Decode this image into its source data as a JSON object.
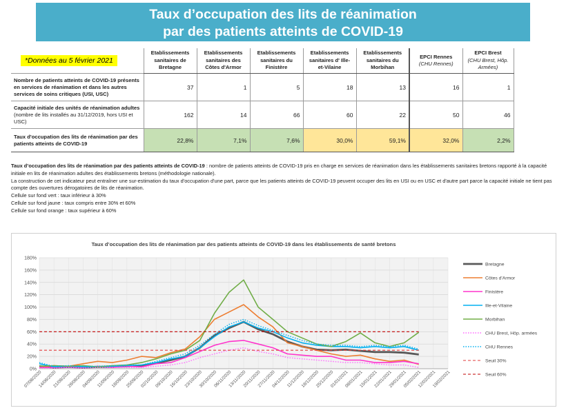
{
  "title": {
    "line1": "Taux d’occupation des lits de réanimation",
    "line2": "par des patients atteints de COVID-19"
  },
  "table": {
    "date_note": "*Données au 5 février 2021",
    "columns": [
      {
        "name": "Etablissements sanitaires de Bretagne",
        "sub": ""
      },
      {
        "name": "Etablissements sanitaires des Côtes d'Armor",
        "sub": ""
      },
      {
        "name": "Etablissements sanitaires du Finistère",
        "sub": ""
      },
      {
        "name": "Etablissements sanitaires d' Ille-et-Vilaine",
        "sub": ""
      },
      {
        "name": "Etablissements sanitaires du Morbihan",
        "sub": ""
      },
      {
        "name": "EPCI Rennes",
        "sub": "(CHU Rennes)"
      },
      {
        "name": "EPCI Brest",
        "sub": "(CHU Brest, Hôp. Armées)"
      }
    ],
    "rows": [
      {
        "label": "Nombre de patients atteints de COVID-19 présents en services de réanimation et dans les autres services de soins critiques (USI, USC)",
        "small": "",
        "values": [
          "37",
          "1",
          "5",
          "18",
          "13",
          "16",
          "1"
        ]
      },
      {
        "label": "Capacité initiale des unités de réanimation adultes",
        "small": "(nombre de lits installés au 31/12/2019, hors USI et USC)",
        "values": [
          "162",
          "14",
          "66",
          "60",
          "22",
          "50",
          "46"
        ]
      },
      {
        "label": "Taux d'occupation des lits de réanimation par des patients atteints de COVID-19",
        "small": "",
        "values": [
          "22,8%",
          "7,1%",
          "7,6%",
          "30,0%",
          "59,1%",
          "32,0%",
          "2,2%"
        ]
      }
    ],
    "rate_colors": [
      "green",
      "green",
      "green",
      "yellow",
      "yellow",
      "yellow",
      "green"
    ],
    "colors": {
      "green": "#c6e0b4",
      "yellow": "#ffe699"
    }
  },
  "notes": {
    "def_bold": "Taux d’occupation des lits de réanimation par des patients atteints de COVID-19",
    "def_text": " : nombre de patients atteints de COVID-19 pris en charge en services de réanimation dans les établissements sanitaires bretons rapporté à la capacité initiale en lits de réanimation adultes des établissements bretons (méthodologie nationale).",
    "line2": "La construction de cet indicateur peut entraîner une sur-estimation du taux d'occupation d'une part, parce que les patients atteints de COVID-19 peuvent occuper des lits en USI ou en USC et d'autre part parce la capacité initiale ne tient pas compte des ouvertures dérogatoires de lits de réanimation.",
    "green": "Cellule sur fond vert :  taux inférieur à 30%",
    "yellow": "Cellule sur fond jaune : taux compris entre 30% et 60%",
    "orange": "Cellule sur fond orange : taux supérieur à 60%"
  },
  "chart_data": {
    "type": "line",
    "title": "Taux d’occupation des lits de réanimation par des patients atteints de COVID-19 dans les établissements de santé bretons",
    "ylim": [
      0,
      180
    ],
    "yticks": [
      "0%",
      "20%",
      "40%",
      "60%",
      "80%",
      "100%",
      "120%",
      "140%",
      "160%",
      "180%"
    ],
    "x": [
      "07/08/2020",
      "14/08/2020",
      "21/08/2020",
      "28/08/2020",
      "04/09/2020",
      "11/09/2020",
      "18/09/2020",
      "25/09/2020",
      "02/10/2020",
      "09/10/2020",
      "16/10/2020",
      "23/10/2020",
      "30/10/2020",
      "06/11/2020",
      "13/11/2020",
      "20/11/2020",
      "27/11/2020",
      "04/12/2020",
      "11/12/2020",
      "18/12/2020",
      "25/12/2020",
      "01/01/2021",
      "08/01/2021",
      "15/01/2021",
      "22/01/2021",
      "29/01/2021",
      "05/02/2021",
      "12/02/2021",
      "19/02/2021"
    ],
    "grid": true,
    "legend_position": "right",
    "series": [
      {
        "name": "Bretagne",
        "color": "#595959",
        "dash": "",
        "width": 2.8,
        "values": [
          4,
          2,
          3,
          2,
          3,
          3,
          4,
          5,
          9,
          14,
          20,
          34,
          54,
          66,
          76,
          64,
          56,
          44,
          36,
          31,
          30,
          31,
          29,
          27,
          27,
          26,
          23,
          null,
          null
        ]
      },
      {
        "name": "Côtes d'Armor",
        "color": "#ed7d31",
        "dash": "",
        "width": 1.6,
        "values": [
          2,
          5,
          4,
          8,
          12,
          10,
          14,
          20,
          18,
          26,
          32,
          52,
          80,
          92,
          104,
          84,
          68,
          42,
          36,
          30,
          24,
          20,
          22,
          16,
          12,
          14,
          7,
          null,
          null
        ]
      },
      {
        "name": "Finistère",
        "color": "#ff33cc",
        "dash": "",
        "width": 1.6,
        "values": [
          2,
          2,
          3,
          2,
          4,
          2,
          4,
          3,
          8,
          10,
          18,
          28,
          38,
          44,
          46,
          40,
          34,
          24,
          22,
          20,
          20,
          14,
          14,
          10,
          10,
          12,
          8,
          null,
          null
        ]
      },
      {
        "name": "Ille-et-Vilaine",
        "color": "#00b0f0",
        "dash": "",
        "width": 1.6,
        "values": [
          8,
          3,
          4,
          3,
          3,
          4,
          5,
          6,
          10,
          16,
          20,
          34,
          52,
          68,
          76,
          66,
          60,
          50,
          42,
          38,
          36,
          36,
          34,
          36,
          34,
          36,
          30,
          null,
          null
        ]
      },
      {
        "name": "Morbihan",
        "color": "#70ad47",
        "dash": "",
        "width": 1.6,
        "values": [
          4,
          5,
          4,
          5,
          3,
          5,
          6,
          10,
          16,
          24,
          30,
          46,
          90,
          124,
          144,
          100,
          80,
          60,
          50,
          40,
          36,
          44,
          58,
          42,
          36,
          42,
          59,
          null,
          null
        ]
      },
      {
        "name": "CHU Brest, Hôp. armées",
        "color": "#ff66ff",
        "dash": "1.5,2",
        "width": 1.4,
        "values": [
          1,
          1,
          2,
          1,
          2,
          2,
          2,
          2,
          4,
          6,
          10,
          18,
          24,
          30,
          34,
          28,
          24,
          18,
          16,
          14,
          12,
          10,
          10,
          8,
          6,
          6,
          2,
          null,
          null
        ]
      },
      {
        "name": "CHU Rennes",
        "color": "#00b0f0",
        "dash": "1.5,2",
        "width": 1.4,
        "values": [
          10,
          4,
          5,
          4,
          4,
          5,
          6,
          6,
          12,
          18,
          24,
          38,
          56,
          72,
          80,
          70,
          62,
          54,
          46,
          40,
          38,
          38,
          36,
          38,
          36,
          38,
          32,
          null,
          null
        ]
      },
      {
        "name": "Seuil 30%",
        "color": "#e23b3b",
        "dash": "4,3",
        "width": 1.1,
        "values": [
          30,
          30,
          30,
          30,
          30,
          30,
          30,
          30,
          30,
          30,
          30,
          30,
          30,
          30,
          30,
          30,
          30,
          30,
          30,
          30,
          30,
          30,
          30,
          30,
          30,
          30,
          30,
          null,
          null
        ]
      },
      {
        "name": "Seuil 60%",
        "color": "#c00000",
        "dash": "4,3",
        "width": 1.1,
        "values": [
          60,
          60,
          60,
          60,
          60,
          60,
          60,
          60,
          60,
          60,
          60,
          60,
          60,
          60,
          60,
          60,
          60,
          60,
          60,
          60,
          60,
          60,
          60,
          60,
          60,
          60,
          60,
          null,
          null
        ]
      }
    ]
  }
}
